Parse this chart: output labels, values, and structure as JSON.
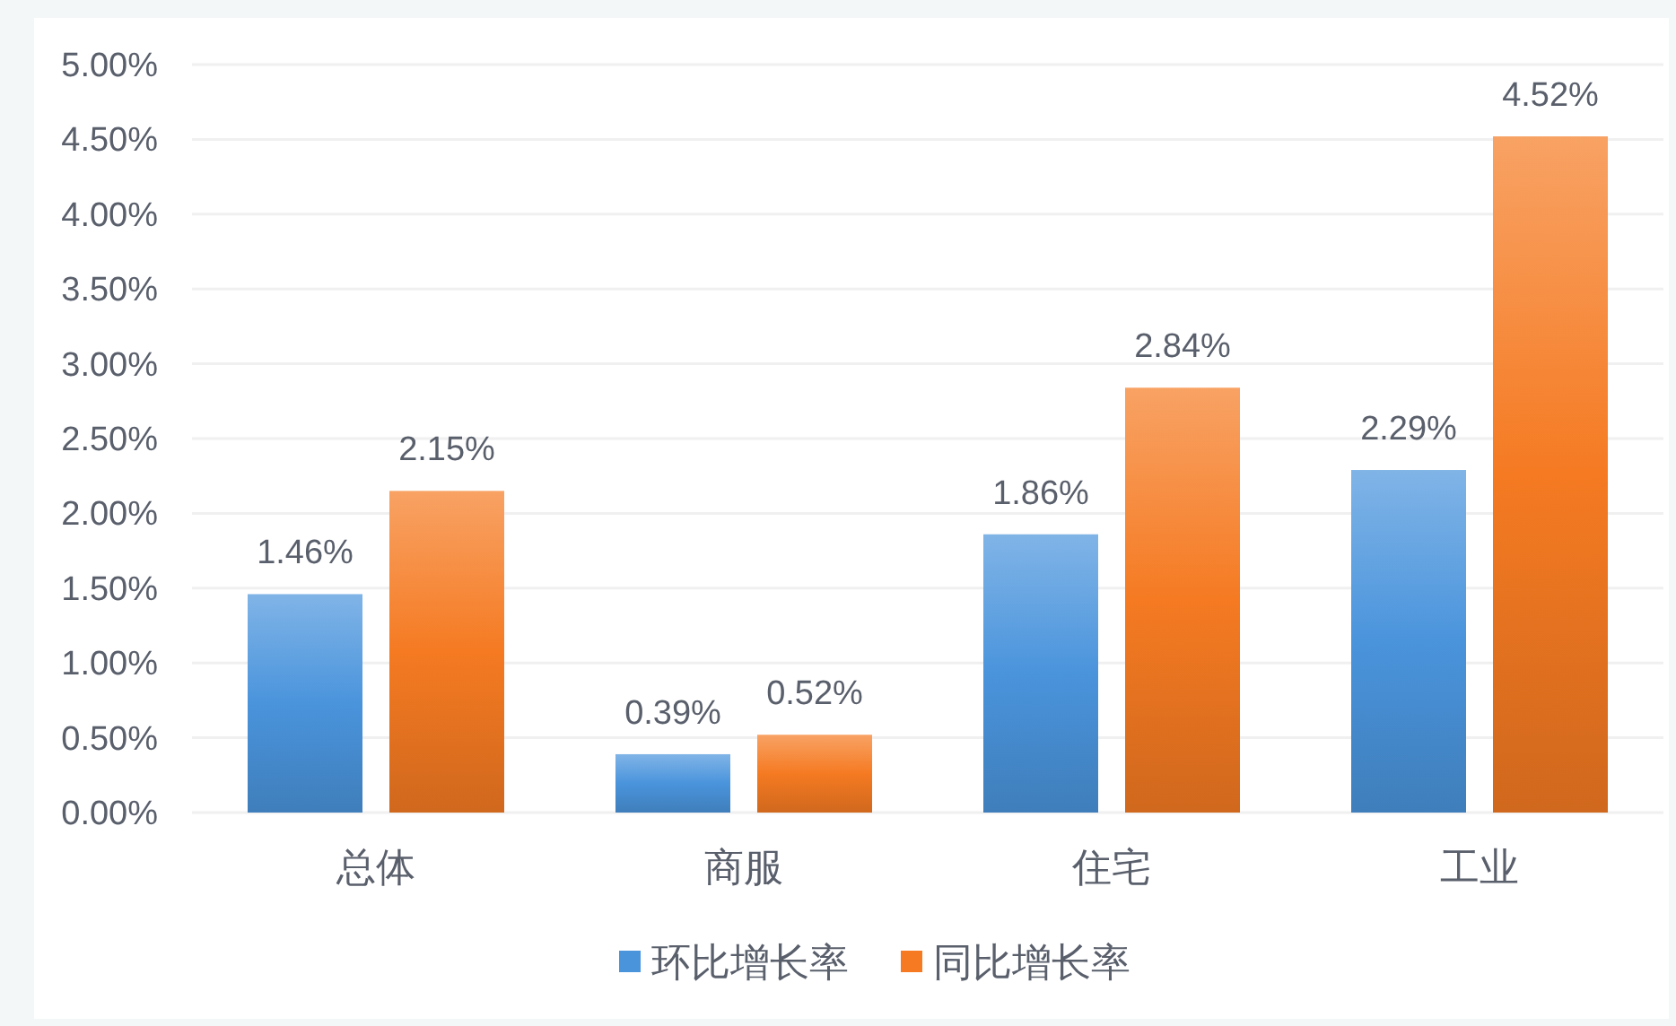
{
  "chart_data": {
    "type": "bar",
    "categories": [
      "总体",
      "商服",
      "住宅",
      "工业"
    ],
    "series": [
      {
        "name": "环比增长率",
        "color": "#4a94dc",
        "values": [
          1.46,
          0.39,
          1.86,
          2.29
        ],
        "value_labels": [
          "1.46%",
          "0.39%",
          "1.86%",
          "2.29%"
        ]
      },
      {
        "name": "同比增长率",
        "color": "#f57a22",
        "values": [
          2.15,
          0.52,
          2.84,
          4.52
        ],
        "value_labels": [
          "2.15%",
          "0.52%",
          "2.84%",
          "4.52%"
        ]
      }
    ],
    "ylim": [
      0,
      5
    ],
    "yticks": [
      {
        "value": 0,
        "label": "0.00%"
      },
      {
        "value": 0.5,
        "label": "0.50%"
      },
      {
        "value": 1,
        "label": "1.00%"
      },
      {
        "value": 1.5,
        "label": "1.50%"
      },
      {
        "value": 2,
        "label": "2.00%"
      },
      {
        "value": 2.5,
        "label": "2.50%"
      },
      {
        "value": 3,
        "label": "3.00%"
      },
      {
        "value": 3.5,
        "label": "3.50%"
      },
      {
        "value": 4,
        "label": "4.00%"
      },
      {
        "value": 4.5,
        "label": "4.50%"
      },
      {
        "value": 5,
        "label": "5.00%"
      }
    ],
    "grid": "y",
    "legend": "bottom"
  }
}
